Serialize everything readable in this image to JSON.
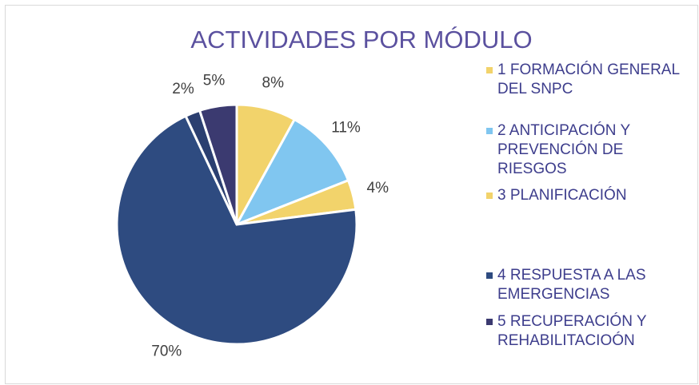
{
  "chart_data": {
    "type": "pie",
    "title": "ACTIVIDADES POR MÓDULO",
    "categories": [
      "1 FORMACIÓN GENERAL DEL SNPC",
      "2 ANTICIPACIÓN Y PREVENCIÓN DE RIESGOS",
      "3 PLANIFICACIÓN",
      "4 RESPUESTA A LAS EMERGENCIAS",
      null,
      "5 RECUPERACIÓN Y REHABILITACIOÓN"
    ],
    "values": [
      8,
      11,
      4,
      70,
      2,
      5
    ],
    "value_labels": [
      "8%",
      "11%",
      "4%",
      "70%",
      "2%",
      "5%"
    ],
    "colors": [
      "#f2d36b",
      "#80c6f0",
      "#f2d36b",
      "#2e4b80",
      "#2b3f70",
      "#3b3a70"
    ],
    "legend": "right"
  }
}
